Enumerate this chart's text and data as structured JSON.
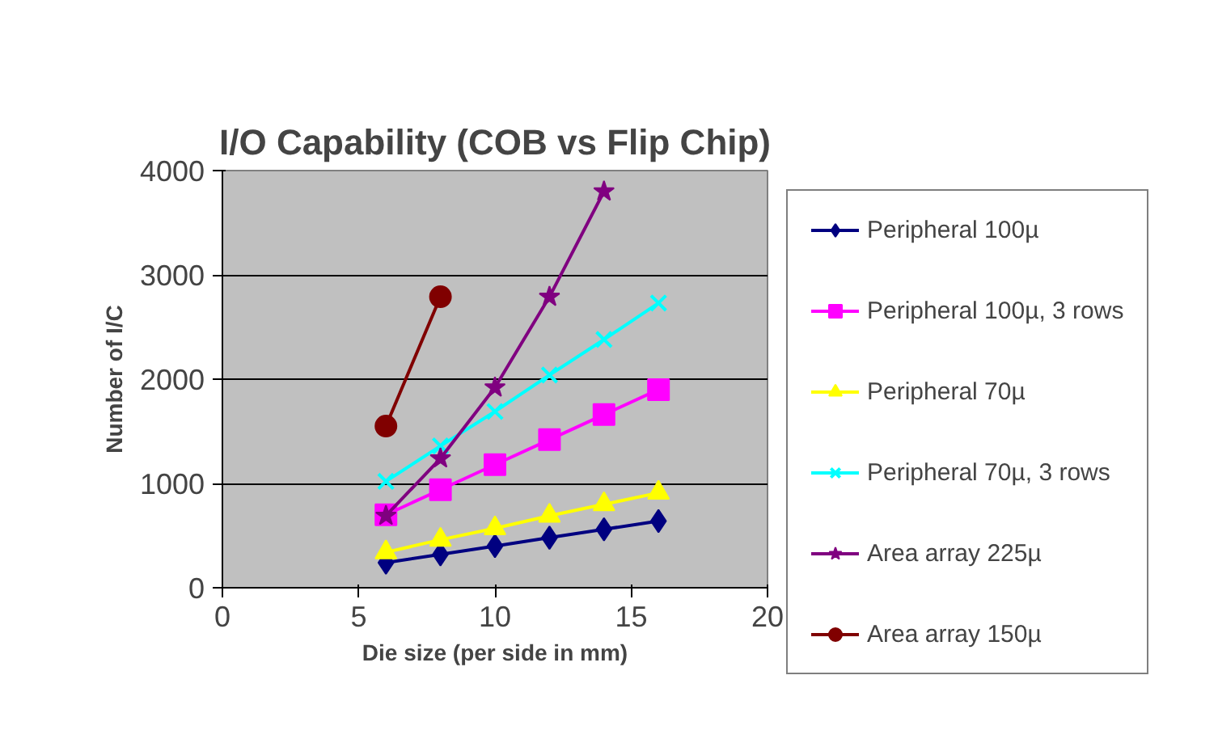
{
  "chart_data": {
    "type": "line",
    "title": "I/O Capability (COB vs Flip Chip)",
    "xlabel": "Die size (per side in mm)",
    "ylabel": "Number of I/C",
    "x": [
      6,
      8,
      10,
      12,
      14,
      16
    ],
    "xlim": [
      0,
      20
    ],
    "xticks": [
      0,
      5,
      10,
      15,
      20
    ],
    "ylim": [
      0,
      4000
    ],
    "yticks": [
      0,
      1000,
      2000,
      3000,
      4000
    ],
    "grid": "y",
    "legend": "right",
    "line_style": "solid",
    "series": [
      {
        "name": "Peripheral 100µ",
        "color": "#000080",
        "marker": "diamond",
        "values": [
          240,
          320,
          400,
          480,
          560,
          640
        ]
      },
      {
        "name": "Peripheral 100µ, 3 rows",
        "color": "#ff00ff",
        "marker": "square",
        "values": [
          700,
          940,
          1180,
          1420,
          1660,
          1900
        ]
      },
      {
        "name": "Peripheral 70µ",
        "color": "#ffff00",
        "marker": "triangle",
        "values": [
          340,
          460,
          570,
          690,
          800,
          910
        ]
      },
      {
        "name": "Peripheral 70µ, 3 rows",
        "color": "#00ffff",
        "marker": "cross",
        "values": [
          1020,
          1360,
          1690,
          2040,
          2380,
          2730
        ]
      },
      {
        "name": "Area array 225µ",
        "color": "#800080",
        "marker": "star",
        "values": [
          690,
          1240,
          1920,
          2790,
          3800,
          null
        ]
      },
      {
        "name": "Area array 150µ",
        "color": "#800000",
        "marker": "circle",
        "values": [
          1550,
          2790,
          null,
          null,
          null,
          null
        ]
      }
    ]
  }
}
